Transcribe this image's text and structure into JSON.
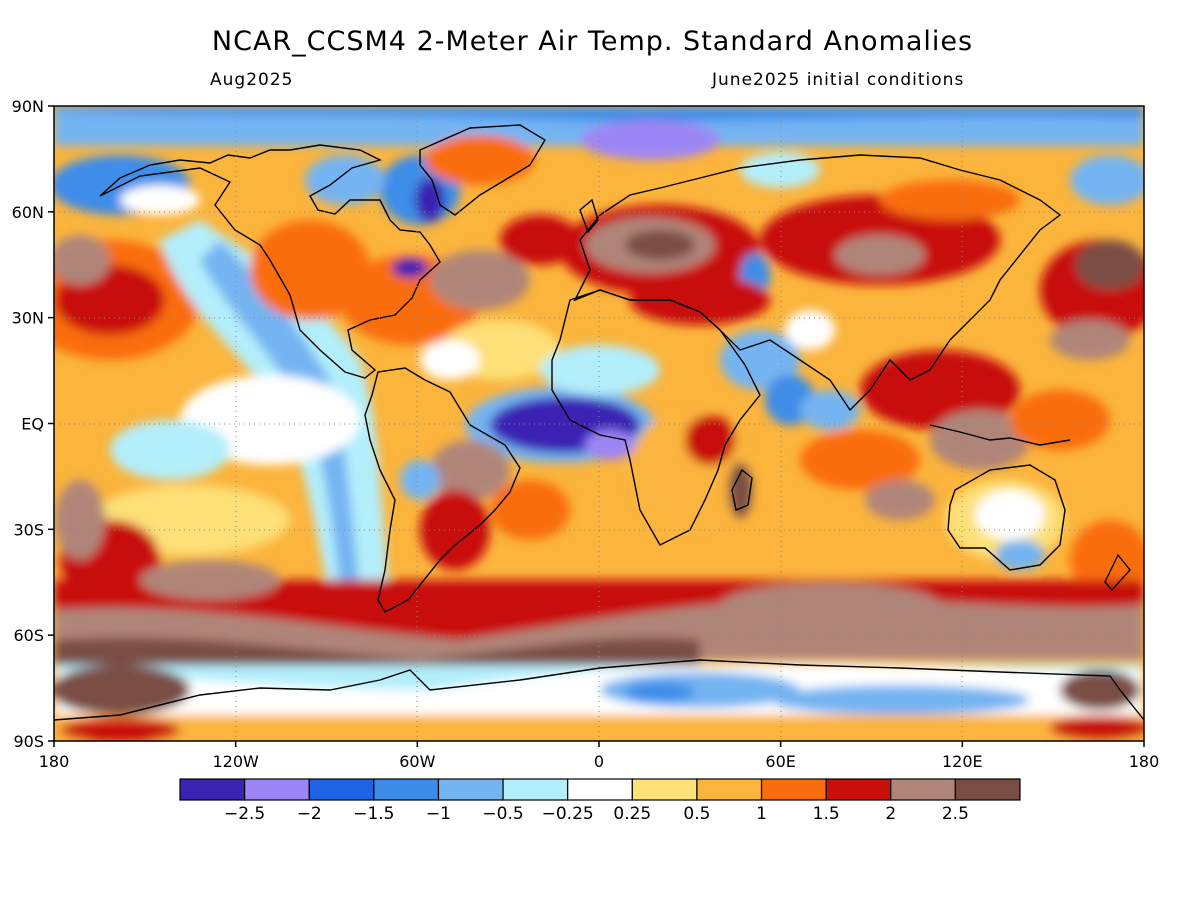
{
  "title": "NCAR_CCSM4 2-Meter Air Temp. Standard Anomalies",
  "subtitle_left": "Aug2025",
  "subtitle_right": "June2025 initial conditions",
  "map": {
    "projection": "equirectangular",
    "lon_range": [
      -180,
      180
    ],
    "lat_range": [
      -90,
      90
    ],
    "lat_ticks": [
      {
        "value": 90,
        "label": "90N"
      },
      {
        "value": 60,
        "label": "60N"
      },
      {
        "value": 30,
        "label": "30N"
      },
      {
        "value": 0,
        "label": "EQ"
      },
      {
        "value": -30,
        "label": "30S"
      },
      {
        "value": -60,
        "label": "60S"
      },
      {
        "value": -90,
        "label": "90S"
      }
    ],
    "lon_ticks": [
      {
        "value": -180,
        "label": "180"
      },
      {
        "value": -120,
        "label": "120W"
      },
      {
        "value": -60,
        "label": "60W"
      },
      {
        "value": 0,
        "label": "0"
      },
      {
        "value": 60,
        "label": "60E"
      },
      {
        "value": 120,
        "label": "120E"
      },
      {
        "value": 180,
        "label": "180"
      }
    ]
  },
  "colorbar": {
    "colors": [
      "#3a23b3",
      "#9c86f5",
      "#1e63e6",
      "#3c8de9",
      "#74b4f2",
      "#b3eefb",
      "#ffffff",
      "#fde077",
      "#fbb43c",
      "#fa6d0f",
      "#c80f08",
      "#b08579",
      "#7a4d44"
    ],
    "labels": [
      "-2.5",
      "-2",
      "-1.5",
      "-1",
      "-0.5",
      "-0.25",
      "0.25",
      "0.5",
      "1",
      "1.5",
      "2",
      "2.5"
    ]
  },
  "anomaly_regions": [
    {
      "name": "Southern Ocean ring",
      "level": 2.5
    },
    {
      "name": "Antarctica interior",
      "level": -1
    },
    {
      "name": "Tropical Atlantic Gulf of Guinea",
      "level": -2.5
    },
    {
      "name": "East Pacific coast of Americas",
      "level": -0.5
    },
    {
      "name": "Europe and Mediterranean",
      "level": 2.5
    },
    {
      "name": "North Pacific",
      "level": 2
    },
    {
      "name": "Arctic Ocean",
      "level": -1.5
    },
    {
      "name": "Hudson Bay / Greenland west",
      "level": -2.5
    },
    {
      "name": "Indian Ocean",
      "level": 1
    },
    {
      "name": "Maritime Continent",
      "level": 2
    },
    {
      "name": "Australia interior",
      "level": 0.25
    },
    {
      "name": "Arabian Sea",
      "level": -1
    }
  ]
}
